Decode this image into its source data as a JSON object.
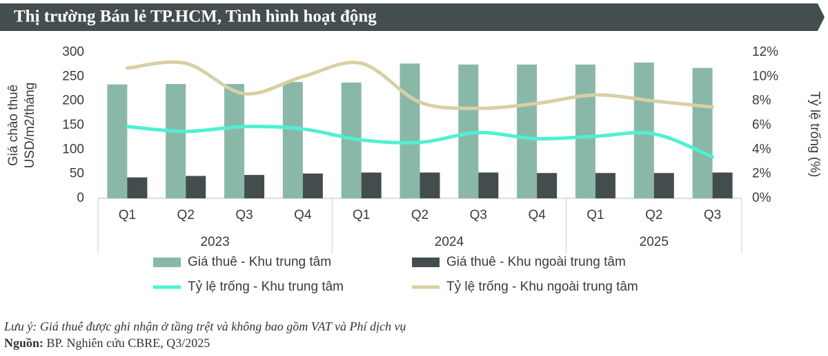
{
  "chart_data": {
    "type": "combo",
    "title": "Thị trường Bán lẻ TP.HCM, Tình hình hoạt động",
    "y_label": [
      "Giá chào thuê",
      "USD/m2/tháng"
    ],
    "y2_label": "Tỷ lệ trống  (%)",
    "groups": [
      {
        "name": "2023",
        "categories": [
          "Q1",
          "Q2",
          "Q3",
          "Q4"
        ]
      },
      {
        "name": "2024",
        "categories": [
          "Q1",
          "Q2",
          "Q3",
          "Q4"
        ]
      },
      {
        "name": "2025",
        "categories": [
          "Q1",
          "Q2",
          "Q3"
        ]
      }
    ],
    "series": [
      {
        "name": "Giá thuê - Khu trung tâm",
        "type": "bar",
        "color": "#8ab8a8",
        "values": [
          234,
          235,
          235,
          239,
          238,
          277,
          275,
          275,
          275,
          279,
          268
        ]
      },
      {
        "name": "Giá thuê - Khu ngoài trung tâm",
        "type": "bar",
        "color": "#434d4d",
        "values": [
          43,
          46,
          48,
          51,
          53,
          53,
          53,
          52,
          52,
          52,
          53
        ]
      },
      {
        "name": "Tỷ lệ trống - Khu trung tâm",
        "type": "line",
        "axis": "y2",
        "color": "#4ff0d4",
        "values": [
          5.9,
          5.5,
          5.9,
          5.7,
          4.8,
          4.6,
          5.4,
          4.9,
          5.1,
          5.3,
          3.4
        ]
      },
      {
        "name": "Tỷ lệ trống - Khu ngoài trung tâm",
        "type": "line",
        "axis": "y2",
        "color": "#d8d0a4",
        "values": [
          10.7,
          11.1,
          8.6,
          10.0,
          11.1,
          7.9,
          7.4,
          7.8,
          8.5,
          8.0,
          7.5
        ]
      }
    ],
    "ylim": [
      0,
      300
    ],
    "yticks": [
      0,
      50,
      100,
      150,
      200,
      250,
      300
    ],
    "y2lim": [
      0,
      12
    ],
    "y2ticks": [
      {
        "value": 0,
        "label": "0%"
      },
      {
        "value": 2,
        "label": "2%"
      },
      {
        "value": 4,
        "label": "4%"
      },
      {
        "value": 6,
        "label": "6%"
      },
      {
        "value": 8,
        "label": "8%"
      },
      {
        "value": 10,
        "label": "10%"
      },
      {
        "value": 12,
        "label": "12%"
      }
    ],
    "note": {
      "label": "Lưu ý:",
      "text": "Giá thuê được ghi nhận ở tầng trệt và không bao gồm VAT và Phí dịch vụ"
    },
    "source": {
      "label": "Nguồn:",
      "text": "BP. Nghiên cứu CBRE, Q3/2025"
    }
  }
}
